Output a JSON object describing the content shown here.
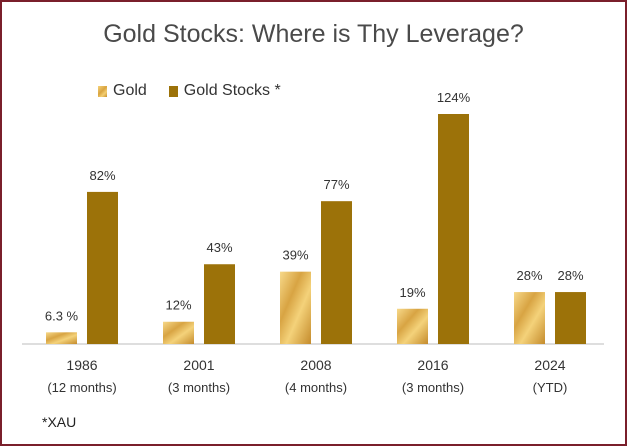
{
  "chart_data": {
    "type": "bar",
    "title": "Gold Stocks: Where is Thy Leverage?",
    "categories": [
      "1986",
      "2001",
      "2008",
      "2016",
      "2024"
    ],
    "category_sublabels": [
      "(12 months)",
      "(3 months)",
      "(4 months)",
      "(3 months)",
      "(YTD)"
    ],
    "series": [
      {
        "name": "Gold",
        "values": [
          6.3,
          12,
          39,
          19,
          28
        ],
        "labels": [
          "6.3 %",
          "12%",
          "39%",
          "19%",
          "28%"
        ]
      },
      {
        "name": "Gold Stocks *",
        "values": [
          82,
          43,
          77,
          124,
          28
        ],
        "labels": [
          "82%",
          "43%",
          "77%",
          "124%",
          "28%"
        ]
      }
    ],
    "ylim": [
      0,
      124
    ],
    "grid": false,
    "legend_position": "top-left",
    "colors": {
      "gold": "#e0ad4a",
      "gold_stocks": "#9c7209",
      "frame": "#7a1f2b"
    }
  },
  "footnote": "*XAU"
}
